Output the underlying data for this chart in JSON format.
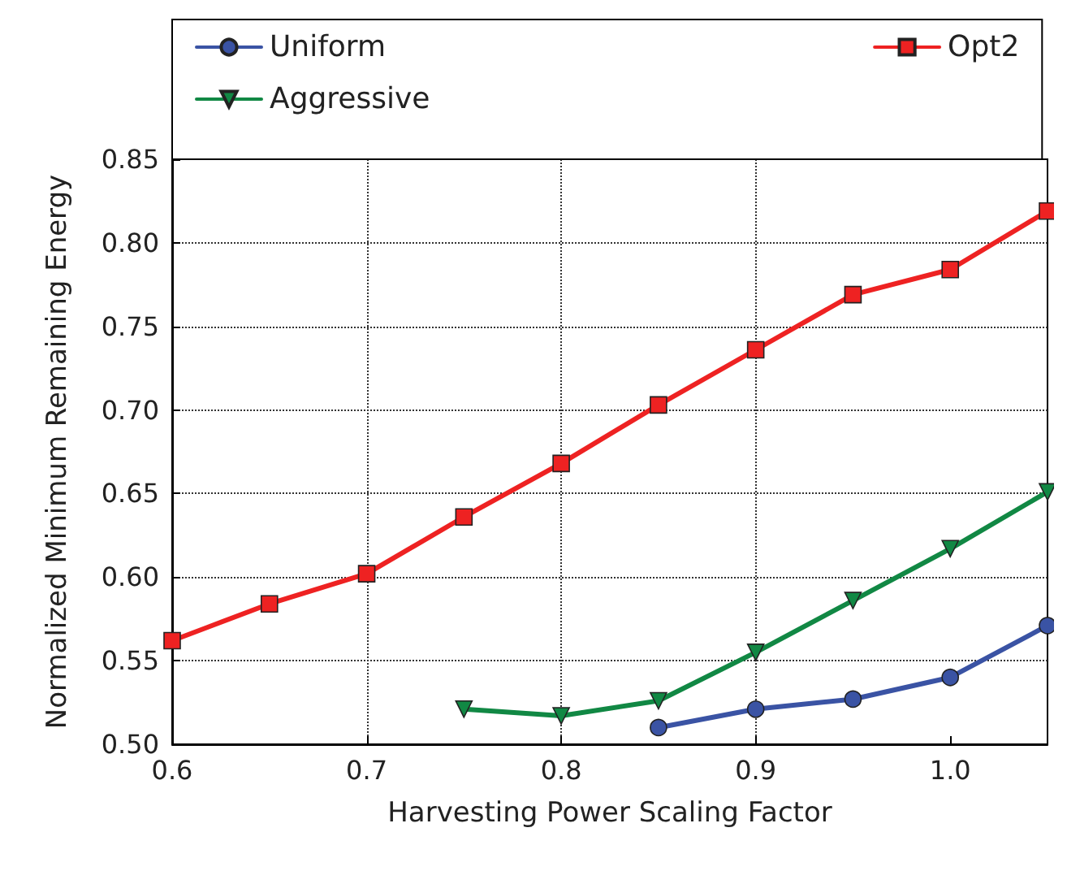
{
  "chart_data": {
    "type": "line",
    "xlabel": "Harvesting Power Scaling Factor",
    "ylabel": "Normalized Minimum Remaining Energy",
    "xlim": [
      0.6,
      1.05
    ],
    "xticks": [
      0.6,
      0.7,
      0.8,
      0.9,
      {
        "value": 1.0,
        "label": "1.0"
      }
    ],
    "ylim": [
      0.5,
      0.85
    ],
    "yticks": [
      {
        "value": 0.5,
        "label": "0.50"
      },
      0.55,
      {
        "value": 0.6,
        "label": "0.60"
      },
      0.65,
      {
        "value": 0.7,
        "label": "0.70"
      },
      0.75,
      {
        "value": 0.8,
        "label": "0.80"
      },
      0.85
    ],
    "grid": true,
    "legend": "top",
    "line_style": "solid",
    "series": [
      {
        "name": "Uniform",
        "color": "#3a53a4",
        "marker": "circle",
        "x": [
          0.85,
          0.9,
          0.95,
          1.0,
          1.05
        ],
        "values": [
          0.51,
          0.521,
          0.527,
          0.54,
          0.571
        ]
      },
      {
        "name": "Aggressive",
        "color": "#118844",
        "marker": "triangle",
        "x": [
          0.75,
          0.8,
          0.85,
          0.9,
          0.95,
          1.0,
          1.05
        ],
        "values": [
          0.521,
          0.517,
          0.526,
          0.555,
          0.586,
          0.617,
          0.651
        ]
      },
      {
        "name": "Opt2",
        "color": "#ee2222",
        "marker": "square",
        "x": [
          0.6,
          0.65,
          0.7,
          0.75,
          0.8,
          0.85,
          0.9,
          0.95,
          1.0,
          1.05
        ],
        "values": [
          0.562,
          0.584,
          0.602,
          0.636,
          0.668,
          0.703,
          0.736,
          0.769,
          0.784,
          0.819
        ]
      }
    ]
  }
}
